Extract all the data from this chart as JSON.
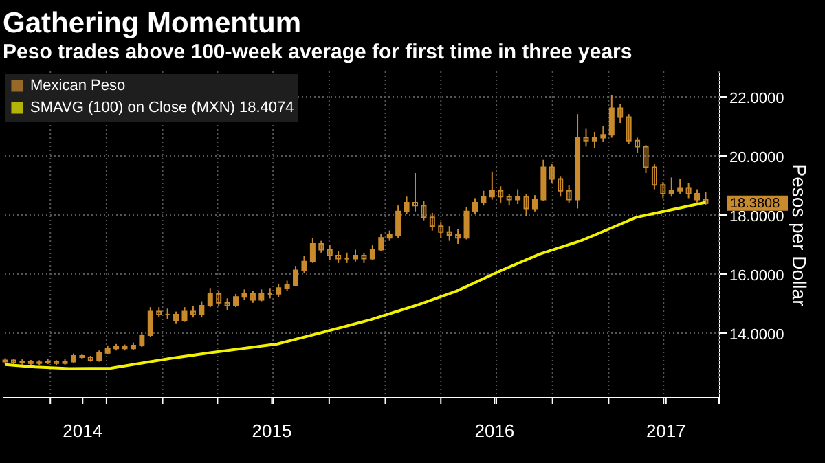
{
  "chart_data": {
    "type": "candlestick",
    "title": "Gathering Momentum",
    "subtitle": "Peso trades above 100-week average for first time in three years",
    "ylabel": "Pesos per Dollar",
    "series": [
      {
        "name": "Mexican Peso",
        "color": "#c98a2e",
        "x": [
          "2014-04-18",
          "2014-05-02",
          "2014-05-16",
          "2014-05-30",
          "2014-06-13",
          "2014-06-27",
          "2014-07-11",
          "2014-07-25",
          "2014-08-08",
          "2014-08-22",
          "2014-09-05",
          "2014-09-19",
          "2014-10-03",
          "2014-10-17",
          "2014-10-31",
          "2014-11-14",
          "2014-11-28",
          "2014-12-12",
          "2014-12-26",
          "2015-01-09",
          "2015-01-23",
          "2015-02-06",
          "2015-02-20",
          "2015-03-06",
          "2015-03-20",
          "2015-04-03",
          "2015-04-17",
          "2015-05-01",
          "2015-05-15",
          "2015-05-29",
          "2015-06-12",
          "2015-06-26",
          "2015-07-10",
          "2015-07-24",
          "2015-08-07",
          "2015-08-21",
          "2015-09-04",
          "2015-09-18",
          "2015-10-02",
          "2015-10-16",
          "2015-10-30",
          "2015-11-13",
          "2015-11-27",
          "2015-12-11",
          "2015-12-25",
          "2016-01-08",
          "2016-01-22",
          "2016-02-05",
          "2016-02-19",
          "2016-03-04",
          "2016-03-18",
          "2016-04-01",
          "2016-04-15",
          "2016-04-29",
          "2016-05-13",
          "2016-05-27",
          "2016-06-10",
          "2016-06-24",
          "2016-07-08",
          "2016-07-22",
          "2016-08-05",
          "2016-08-19",
          "2016-09-02",
          "2016-09-16",
          "2016-09-30",
          "2016-10-14",
          "2016-10-28",
          "2016-11-11",
          "2016-11-25",
          "2016-12-09",
          "2016-12-23",
          "2017-01-06",
          "2017-01-20",
          "2017-02-03",
          "2017-02-17",
          "2017-03-03",
          "2017-03-17",
          "2017-03-31",
          "2017-04-14",
          "2017-04-28",
          "2017-05-12",
          "2017-05-26",
          "2017-06-09"
        ],
        "ohlc": [
          [
            13.0,
            13.12,
            12.93,
            13.05
          ],
          [
            13.05,
            13.1,
            12.92,
            12.98
          ],
          [
            12.98,
            13.08,
            12.9,
            13.0
          ],
          [
            13.0,
            13.06,
            12.88,
            12.95
          ],
          [
            12.95,
            13.05,
            12.88,
            12.98
          ],
          [
            12.98,
            13.1,
            12.92,
            13.0
          ],
          [
            13.0,
            13.05,
            12.88,
            12.95
          ],
          [
            12.95,
            13.08,
            12.9,
            13.0
          ],
          [
            13.0,
            13.28,
            12.95,
            13.2
          ],
          [
            13.2,
            13.27,
            13.08,
            13.15
          ],
          [
            13.15,
            13.2,
            13.0,
            13.05
          ],
          [
            13.05,
            13.38,
            13.0,
            13.3
          ],
          [
            13.3,
            13.55,
            13.25,
            13.45
          ],
          [
            13.45,
            13.6,
            13.38,
            13.5
          ],
          [
            13.5,
            13.58,
            13.38,
            13.45
          ],
          [
            13.45,
            13.65,
            13.4,
            13.55
          ],
          [
            13.55,
            14.0,
            13.5,
            13.9
          ],
          [
            13.9,
            14.85,
            13.85,
            14.7
          ],
          [
            14.7,
            14.85,
            14.5,
            14.6
          ],
          [
            14.6,
            14.8,
            14.45,
            14.6
          ],
          [
            14.6,
            14.7,
            14.3,
            14.4
          ],
          [
            14.4,
            14.85,
            14.35,
            14.7
          ],
          [
            14.7,
            14.9,
            14.5,
            14.6
          ],
          [
            14.6,
            15.05,
            14.5,
            14.9
          ],
          [
            14.9,
            15.5,
            14.85,
            15.3
          ],
          [
            15.3,
            15.4,
            14.9,
            15.0
          ],
          [
            15.0,
            15.15,
            14.75,
            14.9
          ],
          [
            14.9,
            15.3,
            14.85,
            15.2
          ],
          [
            15.2,
            15.45,
            15.1,
            15.3
          ],
          [
            15.3,
            15.4,
            15.0,
            15.1
          ],
          [
            15.1,
            15.45,
            15.05,
            15.3
          ],
          [
            15.3,
            15.5,
            15.15,
            15.3
          ],
          [
            15.3,
            15.65,
            15.2,
            15.5
          ],
          [
            15.5,
            15.75,
            15.4,
            15.6
          ],
          [
            15.6,
            16.25,
            15.55,
            16.1
          ],
          [
            16.1,
            16.6,
            16.0,
            16.4
          ],
          [
            16.4,
            17.2,
            16.35,
            17.0
          ],
          [
            17.0,
            17.1,
            16.7,
            16.8
          ],
          [
            16.8,
            16.95,
            16.45,
            16.6
          ],
          [
            16.6,
            16.75,
            16.35,
            16.5
          ],
          [
            16.5,
            16.7,
            16.35,
            16.5
          ],
          [
            16.5,
            16.8,
            16.4,
            16.6
          ],
          [
            16.6,
            16.7,
            16.35,
            16.5
          ],
          [
            16.5,
            16.95,
            16.45,
            16.8
          ],
          [
            16.8,
            17.35,
            16.75,
            17.2
          ],
          [
            17.2,
            17.45,
            17.1,
            17.3
          ],
          [
            17.3,
            18.3,
            17.2,
            18.1
          ],
          [
            18.1,
            18.6,
            18.0,
            18.4
          ],
          [
            18.4,
            19.4,
            18.1,
            18.3
          ],
          [
            18.3,
            18.45,
            17.8,
            17.9
          ],
          [
            17.9,
            18.05,
            17.45,
            17.6
          ],
          [
            17.6,
            17.75,
            17.2,
            17.4
          ],
          [
            17.4,
            17.6,
            17.1,
            17.3
          ],
          [
            17.3,
            17.5,
            17.0,
            17.2
          ],
          [
            17.2,
            18.25,
            17.15,
            18.1
          ],
          [
            18.1,
            18.55,
            18.0,
            18.4
          ],
          [
            18.4,
            18.8,
            18.3,
            18.6
          ],
          [
            18.6,
            19.45,
            18.5,
            18.8
          ],
          [
            18.8,
            18.95,
            18.4,
            18.6
          ],
          [
            18.6,
            18.7,
            18.3,
            18.5
          ],
          [
            18.5,
            18.85,
            18.35,
            18.6
          ],
          [
            18.6,
            18.7,
            17.95,
            18.2
          ],
          [
            18.2,
            18.65,
            18.1,
            18.5
          ],
          [
            18.5,
            19.85,
            18.45,
            19.6
          ],
          [
            19.6,
            19.7,
            19.05,
            19.2
          ],
          [
            19.2,
            19.3,
            18.6,
            18.8
          ],
          [
            18.8,
            19.0,
            18.4,
            18.5
          ],
          [
            18.5,
            21.4,
            18.2,
            20.6
          ],
          [
            20.6,
            20.9,
            20.3,
            20.5
          ],
          [
            20.5,
            20.8,
            20.25,
            20.6
          ],
          [
            20.6,
            21.0,
            20.45,
            20.7
          ],
          [
            20.7,
            22.05,
            20.6,
            21.6
          ],
          [
            21.6,
            21.75,
            21.1,
            21.3
          ],
          [
            21.3,
            21.4,
            20.4,
            20.5
          ],
          [
            20.5,
            20.6,
            20.1,
            20.3
          ],
          [
            20.3,
            20.35,
            19.4,
            19.6
          ],
          [
            19.6,
            19.7,
            18.85,
            19.0
          ],
          [
            19.0,
            19.1,
            18.55,
            18.7
          ],
          [
            18.7,
            19.25,
            18.6,
            18.8
          ],
          [
            18.8,
            19.2,
            18.7,
            18.9
          ],
          [
            18.9,
            19.05,
            18.55,
            18.7
          ],
          [
            18.7,
            18.85,
            18.4,
            18.5
          ],
          [
            18.5,
            18.75,
            18.33,
            18.3808
          ]
        ]
      },
      {
        "name": "SMAVG (100) on Close (MXN) 18.4074",
        "type": "line",
        "color": "#f2f200",
        "x": [
          "2014-04-18",
          "2014-06-06",
          "2014-08-01",
          "2014-10-08",
          "2015-01-10",
          "2015-03-18",
          "2015-07-08",
          "2015-09-21",
          "2015-12-07",
          "2016-02-19",
          "2016-04-27",
          "2016-07-04",
          "2016-09-10",
          "2016-11-16",
          "2017-01-01",
          "2017-02-15",
          "2017-04-01",
          "2017-06-09"
        ],
        "values": [
          12.9,
          12.82,
          12.77,
          12.78,
          13.1,
          13.3,
          13.6,
          14.0,
          14.42,
          14.9,
          15.4,
          16.05,
          16.65,
          17.1,
          17.5,
          17.9,
          18.1,
          18.4074
        ]
      }
    ],
    "xlim": [
      "2014-04-14",
      "2017-07-01"
    ],
    "xticks": [
      {
        "value": "2014-07-01",
        "label": null
      },
      {
        "value": "2014-10-01",
        "label": null
      },
      {
        "value": "2015-01-01",
        "label": null
      },
      {
        "value": "2015-04-01",
        "label": null
      },
      {
        "value": "2015-07-01",
        "label": null
      },
      {
        "value": "2015-10-01",
        "label": null
      },
      {
        "value": "2016-01-01",
        "label": null
      },
      {
        "value": "2016-04-01",
        "label": null
      },
      {
        "value": "2016-07-01",
        "label": null
      },
      {
        "value": "2016-10-01",
        "label": null
      },
      {
        "value": "2017-01-01",
        "label": null
      },
      {
        "value": "2017-04-01",
        "label": null
      },
      {
        "value": "2017-07-01",
        "label": null
      },
      {
        "value": "2014-08-23",
        "label": "2014"
      },
      {
        "value": "2015-06-29",
        "label": "2015"
      },
      {
        "value": "2016-06-28",
        "label": "2016"
      },
      {
        "value": "2017-04-05",
        "label": "2017"
      }
    ],
    "ylim": [
      11.8,
      22.85
    ],
    "yticks": [
      {
        "value": 14,
        "label": "14.0000"
      },
      {
        "value": 16,
        "label": "16.0000"
      },
      {
        "value": 18,
        "label": "18.0000"
      },
      {
        "value": 20,
        "label": "20.0000"
      },
      {
        "value": 22,
        "label": "22.0000"
      }
    ],
    "annotations": [
      "18.3808"
    ],
    "grid": true,
    "legend": "top left"
  }
}
